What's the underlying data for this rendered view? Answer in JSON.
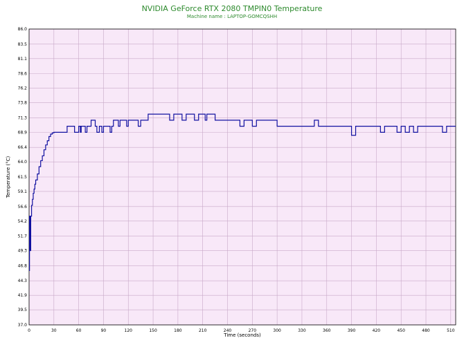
{
  "chart_data": {
    "type": "line",
    "title": "NVIDIA GeForce RTX 2080 TMPIN0 Temperature",
    "subtitle": "Machine name : LAPTOP-GOMCQSHH",
    "xlabel": "Time (seconds)",
    "ylabel": "Temperature (°C)",
    "xlim": [
      0,
      516
    ],
    "ylim": [
      37.0,
      86.0
    ],
    "x_ticks": [
      0,
      30,
      60,
      90,
      120,
      150,
      180,
      210,
      240,
      270,
      300,
      330,
      360,
      390,
      420,
      450,
      480,
      510
    ],
    "y_ticks": [
      "37.0",
      "39.5",
      "41.9",
      "44.3",
      "46.8",
      "49.3",
      "51.7",
      "54.2",
      "56.6",
      "59.1",
      "61.5",
      "64.0",
      "66.4",
      "68.9",
      "71.3",
      "73.8",
      "76.2",
      "78.6",
      "81.1",
      "83.5",
      "86.0"
    ],
    "grid": true,
    "background_color": "#f8e8f8",
    "grid_color": "#c8a8c8",
    "line_color": "#1010a0",
    "title_color": "#2d8a2d",
    "series": [
      {
        "name": "",
        "x": [
          0,
          0.5,
          1,
          1.5,
          2,
          3,
          4,
          5,
          6,
          7,
          8,
          10,
          12,
          14,
          16,
          18,
          20,
          22,
          24,
          26,
          28,
          30,
          35,
          40,
          45,
          46,
          50,
          55,
          60,
          62,
          63,
          66,
          68,
          70,
          74,
          75,
          80,
          82,
          85,
          88,
          90,
          95,
          98,
          100,
          102,
          106,
          108,
          110,
          115,
          118,
          120,
          125,
          130,
          132,
          135,
          140,
          144,
          148,
          150,
          160,
          168,
          170,
          175,
          180,
          185,
          190,
          195,
          200,
          205,
          210,
          213,
          215,
          220,
          225,
          230,
          235,
          240,
          245,
          250,
          255,
          260,
          265,
          270,
          275,
          280,
          285,
          290,
          295,
          300,
          310,
          320,
          330,
          340,
          345,
          350,
          360,
          370,
          380,
          390,
          395,
          400,
          410,
          420,
          425,
          430,
          440,
          445,
          450,
          455,
          460,
          465,
          470,
          475,
          480,
          490,
          500,
          505,
          510,
          516
        ],
        "values": [
          46.0,
          55.0,
          51.7,
          49.3,
          55.0,
          56.8,
          57.8,
          58.8,
          59.5,
          60.3,
          61.0,
          62.0,
          63.2,
          64.2,
          65.0,
          66.0,
          66.8,
          67.5,
          68.2,
          68.6,
          68.8,
          68.9,
          68.9,
          68.9,
          68.9,
          69.9,
          69.9,
          68.9,
          69.9,
          68.9,
          69.9,
          69.9,
          68.9,
          69.9,
          69.9,
          70.9,
          69.9,
          68.9,
          69.9,
          68.9,
          69.9,
          69.9,
          68.9,
          69.9,
          70.9,
          70.9,
          69.9,
          70.9,
          70.9,
          69.9,
          70.9,
          70.9,
          70.9,
          69.9,
          70.9,
          70.9,
          71.9,
          71.9,
          71.9,
          71.9,
          71.9,
          70.9,
          71.9,
          71.9,
          70.9,
          71.9,
          71.9,
          70.9,
          71.9,
          71.9,
          70.9,
          71.9,
          71.9,
          70.9,
          70.9,
          70.9,
          70.9,
          70.9,
          70.9,
          69.9,
          70.9,
          70.9,
          69.9,
          70.9,
          70.9,
          70.9,
          70.9,
          70.9,
          69.9,
          69.9,
          69.9,
          69.9,
          69.9,
          70.9,
          69.9,
          69.9,
          69.9,
          69.9,
          68.4,
          69.9,
          69.9,
          69.9,
          69.9,
          68.9,
          69.9,
          69.9,
          68.9,
          69.9,
          68.9,
          69.9,
          68.9,
          69.9,
          69.9,
          69.9,
          69.9,
          68.9,
          69.9,
          69.9,
          69.9
        ]
      }
    ]
  }
}
